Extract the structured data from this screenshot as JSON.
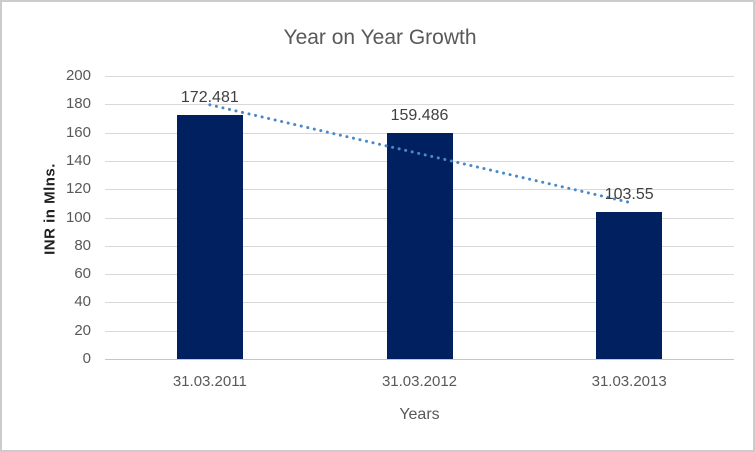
{
  "chart_data": {
    "type": "bar",
    "title": "Year on Year Growth",
    "categories": [
      "31.03.2011",
      "31.03.2012",
      "31.03.2013"
    ],
    "values": [
      172.481,
      159.486,
      103.55
    ],
    "data_labels": [
      "172.481",
      "159.486",
      "103.55"
    ],
    "xlabel": "Years",
    "ylabel": "INR in Mlns.",
    "ylim": [
      0,
      200
    ],
    "yticks": [
      0,
      20,
      40,
      60,
      80,
      100,
      120,
      140,
      160,
      180,
      200
    ],
    "grid": true,
    "legend": "none",
    "bar_color": "#002060",
    "trendline": {
      "type": "linear",
      "style": "dotted",
      "color": "#4a89c8",
      "start_value": 179.64,
      "end_value": 110.71
    }
  },
  "colors": {
    "background": "#ffffff",
    "frame_border": "#cccccc",
    "title_text": "#595959",
    "tick_text": "#595959",
    "category_text": "#595959",
    "data_label_text": "#404040",
    "y_axis_title_text": "#1f1f1f",
    "x_axis_title_text": "#595959",
    "gridline": "#d9d9d9",
    "axis_line": "#c6c6c6"
  }
}
